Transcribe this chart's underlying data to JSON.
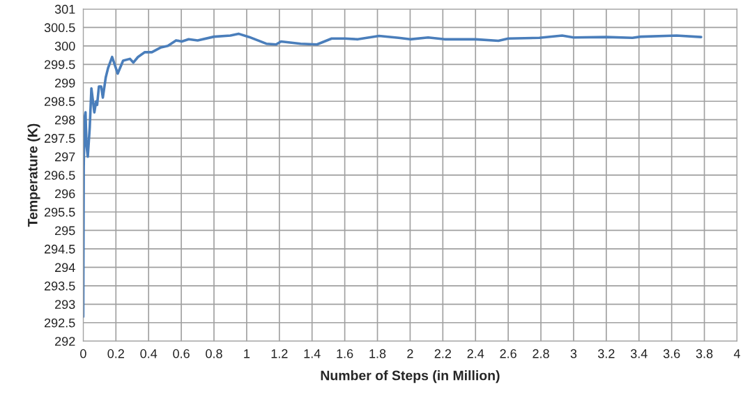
{
  "chart_data": {
    "type": "line",
    "xlabel": "Number of Steps (in Million)",
    "ylabel": "Temperature (K)",
    "series": [
      {
        "color": "#4a7ebb",
        "x": [
          0,
          0.003,
          0.008,
          0.014,
          0.02,
          0.028,
          0.04,
          0.05,
          0.068,
          0.079,
          0.085,
          0.096,
          0.11,
          0.12,
          0.138,
          0.152,
          0.177,
          0.211,
          0.244,
          0.286,
          0.307,
          0.335,
          0.377,
          0.42,
          0.476,
          0.518,
          0.568,
          0.603,
          0.645,
          0.7,
          0.8,
          0.9,
          0.95,
          1.016,
          1.12,
          1.18,
          1.21,
          1.33,
          1.43,
          1.52,
          1.6,
          1.68,
          1.81,
          1.93,
          2.0,
          2.11,
          2.21,
          2.4,
          2.54,
          2.6,
          2.79,
          2.93,
          3.0,
          3.2,
          3.36,
          3.41,
          3.63,
          3.78
        ],
        "values": [
          292.66,
          296.71,
          298.04,
          298.2,
          297.3,
          297.0,
          297.8,
          298.85,
          298.2,
          298.5,
          298.4,
          298.9,
          298.9,
          298.6,
          299.15,
          299.4,
          299.7,
          299.25,
          299.6,
          299.65,
          299.55,
          299.7,
          299.83,
          299.83,
          299.96,
          300.0,
          300.15,
          300.12,
          300.18,
          300.15,
          300.25,
          300.28,
          300.33,
          300.24,
          300.06,
          300.04,
          300.12,
          300.06,
          300.04,
          300.2,
          300.2,
          300.18,
          300.27,
          300.22,
          300.18,
          300.23,
          300.18,
          300.18,
          300.14,
          300.2,
          300.22,
          300.28,
          300.23,
          300.24,
          300.22,
          300.25,
          300.28,
          300.24
        ]
      }
    ],
    "xlim": [
      0,
      4
    ],
    "xticks": [
      0,
      0.2,
      0.4,
      0.6,
      0.8,
      1,
      1.2,
      1.4,
      1.6,
      1.8,
      2,
      2.2,
      2.4,
      2.6,
      2.8,
      3,
      3.2,
      3.4,
      3.6,
      3.8,
      4
    ],
    "ylim": [
      292,
      301
    ],
    "yticks": [
      292,
      292.5,
      293,
      293.5,
      294,
      294.5,
      295,
      295.5,
      296,
      296.5,
      297,
      297.5,
      298,
      298.5,
      299,
      299.5,
      300,
      300.5,
      301
    ],
    "grid": true,
    "marker": "none",
    "line_style": "solid"
  }
}
